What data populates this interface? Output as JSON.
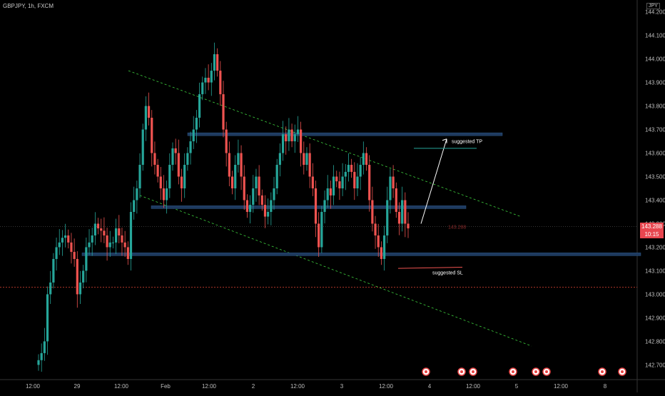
{
  "symbol": "GBPJPY, 1h, FXCM",
  "currency": "JPY",
  "last_price": "143.288",
  "countdown": "10:15",
  "overlay_price": "143.288",
  "colors": {
    "up": "#26a69a",
    "down": "#ef5350",
    "zone": "#1e3a5f",
    "channel": "#3ecf3e"
  },
  "annotations": {
    "tp": "suggested TP",
    "sl": "suggested SL"
  },
  "chart_data": {
    "type": "candlestick",
    "symbol": "GBPJPY",
    "timeframe": "1h",
    "ylim": [
      142.68,
      144.22
    ],
    "y_ticks": [
      144.2,
      144.1,
      144.0,
      143.9,
      143.8,
      143.7,
      143.6,
      143.5,
      143.4,
      143.3,
      143.2,
      143.1,
      143.0,
      142.9,
      142.8,
      142.7
    ],
    "y_tick_labels": [
      "144.200",
      "144.100",
      "144.000",
      "143.900",
      "143.800",
      "143.700",
      "143.600",
      "143.500",
      "143.400",
      "143.300",
      "143.200",
      "143.100",
      "143.000",
      "142.900",
      "142.800",
      "142.700"
    ],
    "x_tick_labels": [
      "12:00",
      "29",
      "12:00",
      "Feb",
      "12:00",
      "2",
      "12:00",
      "3",
      "12:00",
      "4",
      "12:00",
      "5",
      "12:00",
      "8"
    ],
    "levels": [
      143.68,
      143.37,
      143.17
    ],
    "closes": [
      142.72,
      142.75,
      142.8,
      143.0,
      143.05,
      143.15,
      143.2,
      143.22,
      143.24,
      143.25,
      143.22,
      143.18,
      143.15,
      143.0,
      143.05,
      143.1,
      143.2,
      143.22,
      143.25,
      143.3,
      143.28,
      143.27,
      143.25,
      143.2,
      143.22,
      143.22,
      143.28,
      143.25,
      143.22,
      143.2,
      143.15,
      143.35,
      143.4,
      143.45,
      143.55,
      143.7,
      143.8,
      143.75,
      143.6,
      143.55,
      143.5,
      143.45,
      143.4,
      143.45,
      143.55,
      143.62,
      143.6,
      143.5,
      143.45,
      143.55,
      143.6,
      143.65,
      143.7,
      143.75,
      143.85,
      143.9,
      143.92,
      143.9,
      143.95,
      144.02,
      143.95,
      143.85,
      143.7,
      143.6,
      143.5,
      143.45,
      143.55,
      143.6,
      143.5,
      143.4,
      143.35,
      143.38,
      143.45,
      143.5,
      143.42,
      143.38,
      143.33,
      143.35,
      143.4,
      143.45,
      143.55,
      143.6,
      143.68,
      143.65,
      143.7,
      143.65,
      143.68,
      143.7,
      143.6,
      143.55,
      143.6,
      143.5,
      143.45,
      143.3,
      143.2,
      143.35,
      143.4,
      143.45,
      143.42,
      143.5,
      143.48,
      143.45,
      143.5,
      143.52,
      143.55,
      143.52,
      143.45,
      143.5,
      143.55,
      143.6,
      143.55,
      143.4,
      143.3,
      143.25,
      143.2,
      143.15,
      143.25,
      143.4,
      143.5,
      143.45,
      143.35,
      143.3,
      143.4,
      143.3,
      143.28
    ]
  }
}
